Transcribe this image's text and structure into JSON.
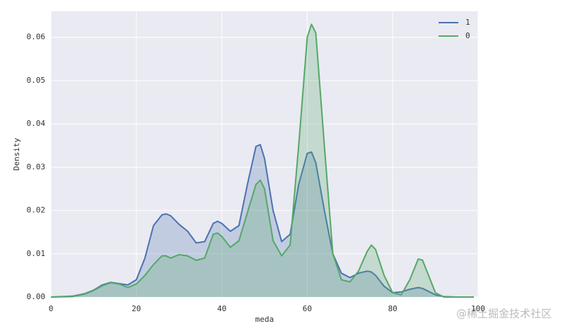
{
  "chart_data": {
    "type": "area",
    "x_label": "meda",
    "y_label": "Density",
    "watermark": "@稀土掘金技术社区",
    "xlim": [
      0,
      100
    ],
    "xticks": [
      0,
      20,
      40,
      60,
      80,
      100
    ],
    "ylim": [
      0,
      0.066
    ],
    "yticks": [
      {
        "value": 0,
        "label": "0.00"
      },
      0.01,
      0.02,
      0.03,
      0.04,
      0.05,
      0.06
    ],
    "grid": true,
    "legend": "upper right",
    "x": [
      0,
      5,
      8,
      10,
      12,
      14,
      16,
      18,
      20,
      22,
      24,
      26,
      27,
      28,
      30,
      32,
      34,
      36,
      38,
      39,
      40,
      42,
      44,
      46,
      48,
      49,
      50,
      52,
      54,
      56,
      58,
      60,
      61,
      62,
      64,
      66,
      68,
      70,
      72,
      74,
      75,
      76,
      78,
      80,
      82,
      84,
      86,
      87,
      88,
      90,
      92,
      95,
      99
    ],
    "series": [
      {
        "name": "1",
        "color": "#4c72b0",
        "values": [
          0,
          0.0002,
          0.0008,
          0.0016,
          0.0028,
          0.0034,
          0.0031,
          0.0028,
          0.004,
          0.009,
          0.0165,
          0.019,
          0.0192,
          0.0188,
          0.0168,
          0.0152,
          0.0125,
          0.0128,
          0.017,
          0.0175,
          0.017,
          0.0152,
          0.0165,
          0.026,
          0.0348,
          0.0352,
          0.032,
          0.02,
          0.0128,
          0.0145,
          0.026,
          0.0332,
          0.0335,
          0.031,
          0.02,
          0.01,
          0.0055,
          0.0045,
          0.0055,
          0.006,
          0.0058,
          0.005,
          0.0025,
          0.001,
          0.0012,
          0.0018,
          0.0022,
          0.002,
          0.0015,
          0.0005,
          0.0001,
          0,
          0
        ]
      },
      {
        "name": "0",
        "color": "#55a868",
        "values": [
          0,
          0.0001,
          0.0007,
          0.0015,
          0.0026,
          0.0033,
          0.003,
          0.0022,
          0.003,
          0.005,
          0.0075,
          0.0095,
          0.0095,
          0.009,
          0.0098,
          0.0095,
          0.0085,
          0.009,
          0.0145,
          0.0148,
          0.014,
          0.0115,
          0.013,
          0.0195,
          0.026,
          0.027,
          0.025,
          0.013,
          0.0095,
          0.012,
          0.035,
          0.06,
          0.063,
          0.061,
          0.035,
          0.01,
          0.004,
          0.0035,
          0.006,
          0.0105,
          0.012,
          0.011,
          0.005,
          0.001,
          0.0005,
          0.004,
          0.0088,
          0.0085,
          0.006,
          0.001,
          0,
          0,
          0
        ]
      }
    ]
  }
}
